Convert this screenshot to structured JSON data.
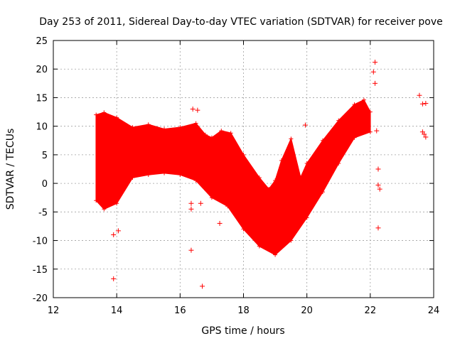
{
  "chart_data": {
    "type": "scatter",
    "title": "Day 253 of 2011, Sidereal Day-to-day VTEC variation (SDTVAR) for receiver pove",
    "xlabel": "GPS time / hours",
    "ylabel": "SDTVAR / TECUs",
    "xlim": [
      12,
      24
    ],
    "ylim": [
      -20,
      25
    ],
    "x_ticks": [
      12,
      14,
      16,
      18,
      20,
      22,
      24
    ],
    "y_ticks": [
      -20,
      -15,
      -10,
      -5,
      0,
      5,
      10,
      15,
      20,
      25
    ],
    "grid": true,
    "marker": "plus",
    "series_color": "#ff0000",
    "band_upper": [
      {
        "x": 13.35,
        "y": 12.0
      },
      {
        "x": 13.6,
        "y": 12.4
      },
      {
        "x": 14.0,
        "y": 11.5
      },
      {
        "x": 14.5,
        "y": 9.8
      },
      {
        "x": 15.0,
        "y": 10.3
      },
      {
        "x": 15.5,
        "y": 9.5
      },
      {
        "x": 16.0,
        "y": 9.8
      },
      {
        "x": 16.5,
        "y": 10.5
      },
      {
        "x": 16.8,
        "y": 8.5
      },
      {
        "x": 17.0,
        "y": 8.0
      },
      {
        "x": 17.3,
        "y": 9.2
      },
      {
        "x": 17.6,
        "y": 8.8
      },
      {
        "x": 18.0,
        "y": 5.0
      },
      {
        "x": 18.5,
        "y": 1.0
      },
      {
        "x": 18.8,
        "y": -1.0
      },
      {
        "x": 19.0,
        "y": 0.5
      },
      {
        "x": 19.2,
        "y": 4.0
      },
      {
        "x": 19.5,
        "y": 7.8
      },
      {
        "x": 19.8,
        "y": 1.0
      },
      {
        "x": 20.0,
        "y": 3.5
      },
      {
        "x": 20.5,
        "y": 7.5
      },
      {
        "x": 21.0,
        "y": 11.0
      },
      {
        "x": 21.5,
        "y": 13.8
      },
      {
        "x": 21.8,
        "y": 14.6
      },
      {
        "x": 22.0,
        "y": 12.5
      }
    ],
    "band_lower": [
      {
        "x": 22.0,
        "y": 9.0
      },
      {
        "x": 21.5,
        "y": 8.0
      },
      {
        "x": 21.0,
        "y": 3.5
      },
      {
        "x": 20.5,
        "y": -1.5
      },
      {
        "x": 20.0,
        "y": -6.0
      },
      {
        "x": 19.5,
        "y": -10.0
      },
      {
        "x": 19.0,
        "y": -12.5
      },
      {
        "x": 18.5,
        "y": -11.0
      },
      {
        "x": 18.0,
        "y": -8.0
      },
      {
        "x": 17.5,
        "y": -4.0
      },
      {
        "x": 17.0,
        "y": -2.5
      },
      {
        "x": 16.5,
        "y": 0.5
      },
      {
        "x": 16.0,
        "y": 1.5
      },
      {
        "x": 15.5,
        "y": 1.8
      },
      {
        "x": 15.0,
        "y": 1.5
      },
      {
        "x": 14.5,
        "y": 1.0
      },
      {
        "x": 14.0,
        "y": -3.5
      },
      {
        "x": 13.6,
        "y": -4.5
      },
      {
        "x": 13.35,
        "y": -3.0
      }
    ],
    "points": [
      {
        "x": 13.9,
        "y": -16.7
      },
      {
        "x": 13.9,
        "y": -9.0
      },
      {
        "x": 14.05,
        "y": -8.3
      },
      {
        "x": 16.35,
        "y": -11.7
      },
      {
        "x": 16.35,
        "y": -4.5
      },
      {
        "x": 16.35,
        "y": -3.5
      },
      {
        "x": 16.4,
        "y": 13.0
      },
      {
        "x": 16.55,
        "y": 12.8
      },
      {
        "x": 16.7,
        "y": -18.0
      },
      {
        "x": 16.65,
        "y": -3.5
      },
      {
        "x": 17.25,
        "y": -7.0
      },
      {
        "x": 17.25,
        "y": -2.0
      },
      {
        "x": 19.95,
        "y": 10.2
      },
      {
        "x": 22.15,
        "y": 21.2
      },
      {
        "x": 22.1,
        "y": 19.5
      },
      {
        "x": 22.15,
        "y": 17.5
      },
      {
        "x": 22.2,
        "y": 9.2
      },
      {
        "x": 22.25,
        "y": 2.5
      },
      {
        "x": 22.25,
        "y": -0.3
      },
      {
        "x": 22.3,
        "y": -1.0
      },
      {
        "x": 22.25,
        "y": -7.8
      },
      {
        "x": 23.55,
        "y": 15.4
      },
      {
        "x": 23.65,
        "y": 13.9
      },
      {
        "x": 23.75,
        "y": 14.0
      },
      {
        "x": 23.65,
        "y": 9.0
      },
      {
        "x": 23.7,
        "y": 8.6
      },
      {
        "x": 23.75,
        "y": 8.1
      }
    ]
  }
}
